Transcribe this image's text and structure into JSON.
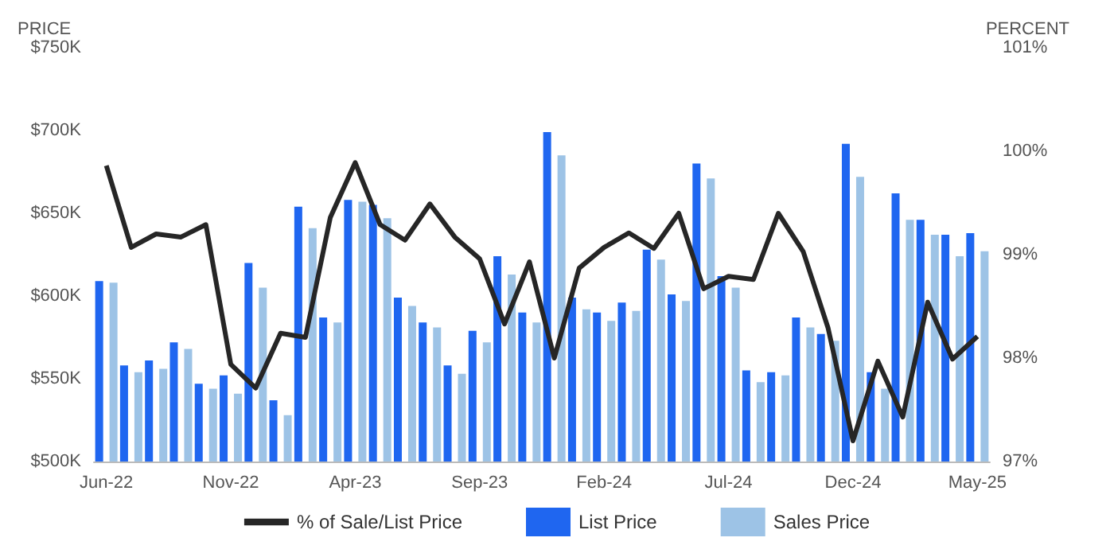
{
  "chart_data": {
    "type": "bar",
    "ylabel": "PRICE",
    "y2label": "PERCENT",
    "categories": [
      "Jun-22",
      null,
      null,
      null,
      null,
      "Nov-22",
      null,
      null,
      null,
      null,
      "Apr-23",
      null,
      null,
      null,
      null,
      "Sep-23",
      null,
      null,
      null,
      null,
      "Feb-24",
      null,
      null,
      null,
      null,
      "Jul-24",
      null,
      null,
      null,
      null,
      "Dec-24",
      null,
      null,
      null,
      null,
      "May-25"
    ],
    "series": [
      {
        "name": "% of Sale/List Price",
        "type": "line",
        "axis": "y2",
        "color": "#262626",
        "values": [
          99.86,
          99.07,
          99.2,
          99.17,
          99.29,
          97.94,
          97.71,
          98.24,
          98.2,
          99.36,
          99.89,
          99.29,
          99.14,
          99.49,
          99.17,
          98.96,
          98.33,
          98.93,
          98.0,
          98.87,
          99.07,
          99.21,
          99.06,
          99.4,
          98.67,
          98.79,
          98.76,
          99.4,
          99.03,
          98.29,
          97.2,
          97.97,
          97.43,
          98.54,
          97.99,
          98.21
        ]
      },
      {
        "name": "List Price",
        "color": "#1f66f0",
        "values": [
          609000,
          558000,
          561000,
          572000,
          547000,
          552000,
          620000,
          537000,
          654000,
          587000,
          658000,
          655000,
          599000,
          584000,
          558000,
          579000,
          624000,
          590000,
          699000,
          599000,
          590000,
          596000,
          628000,
          601000,
          680000,
          612000,
          555000,
          554000,
          587000,
          577000,
          692000,
          554000,
          662000,
          646000,
          637000,
          638000
        ]
      },
      {
        "name": "Sales Price",
        "color": "#9dc3e6",
        "values": [
          608000,
          554000,
          556000,
          568000,
          544000,
          541000,
          605000,
          528000,
          641000,
          584000,
          657000,
          647000,
          594000,
          581000,
          553000,
          572000,
          613000,
          584000,
          685000,
          592000,
          585000,
          591000,
          622000,
          597000,
          671000,
          605000,
          548000,
          552000,
          581000,
          573000,
          672000,
          544000,
          646000,
          637000,
          624000,
          627000
        ]
      }
    ],
    "ylim": [
      500000,
      750000
    ],
    "yticks": [
      {
        "value": 500000,
        "label": "$500K"
      },
      {
        "value": 550000,
        "label": "$550K"
      },
      {
        "value": 600000,
        "label": "$600K"
      },
      {
        "value": 650000,
        "label": "$650K"
      },
      {
        "value": 700000,
        "label": "$700K"
      },
      {
        "value": 750000,
        "label": "$750K"
      }
    ],
    "y2lim": [
      97,
      101
    ],
    "y2ticks": [
      {
        "value": 97,
        "label": "97%"
      },
      {
        "value": 98,
        "label": "98%"
      },
      {
        "value": 99,
        "label": "99%"
      },
      {
        "value": 100,
        "label": "100%"
      },
      {
        "value": 101,
        "label": "101%"
      }
    ],
    "grid": false,
    "legend": "bottom",
    "line_style": "solid",
    "marker": "none"
  }
}
